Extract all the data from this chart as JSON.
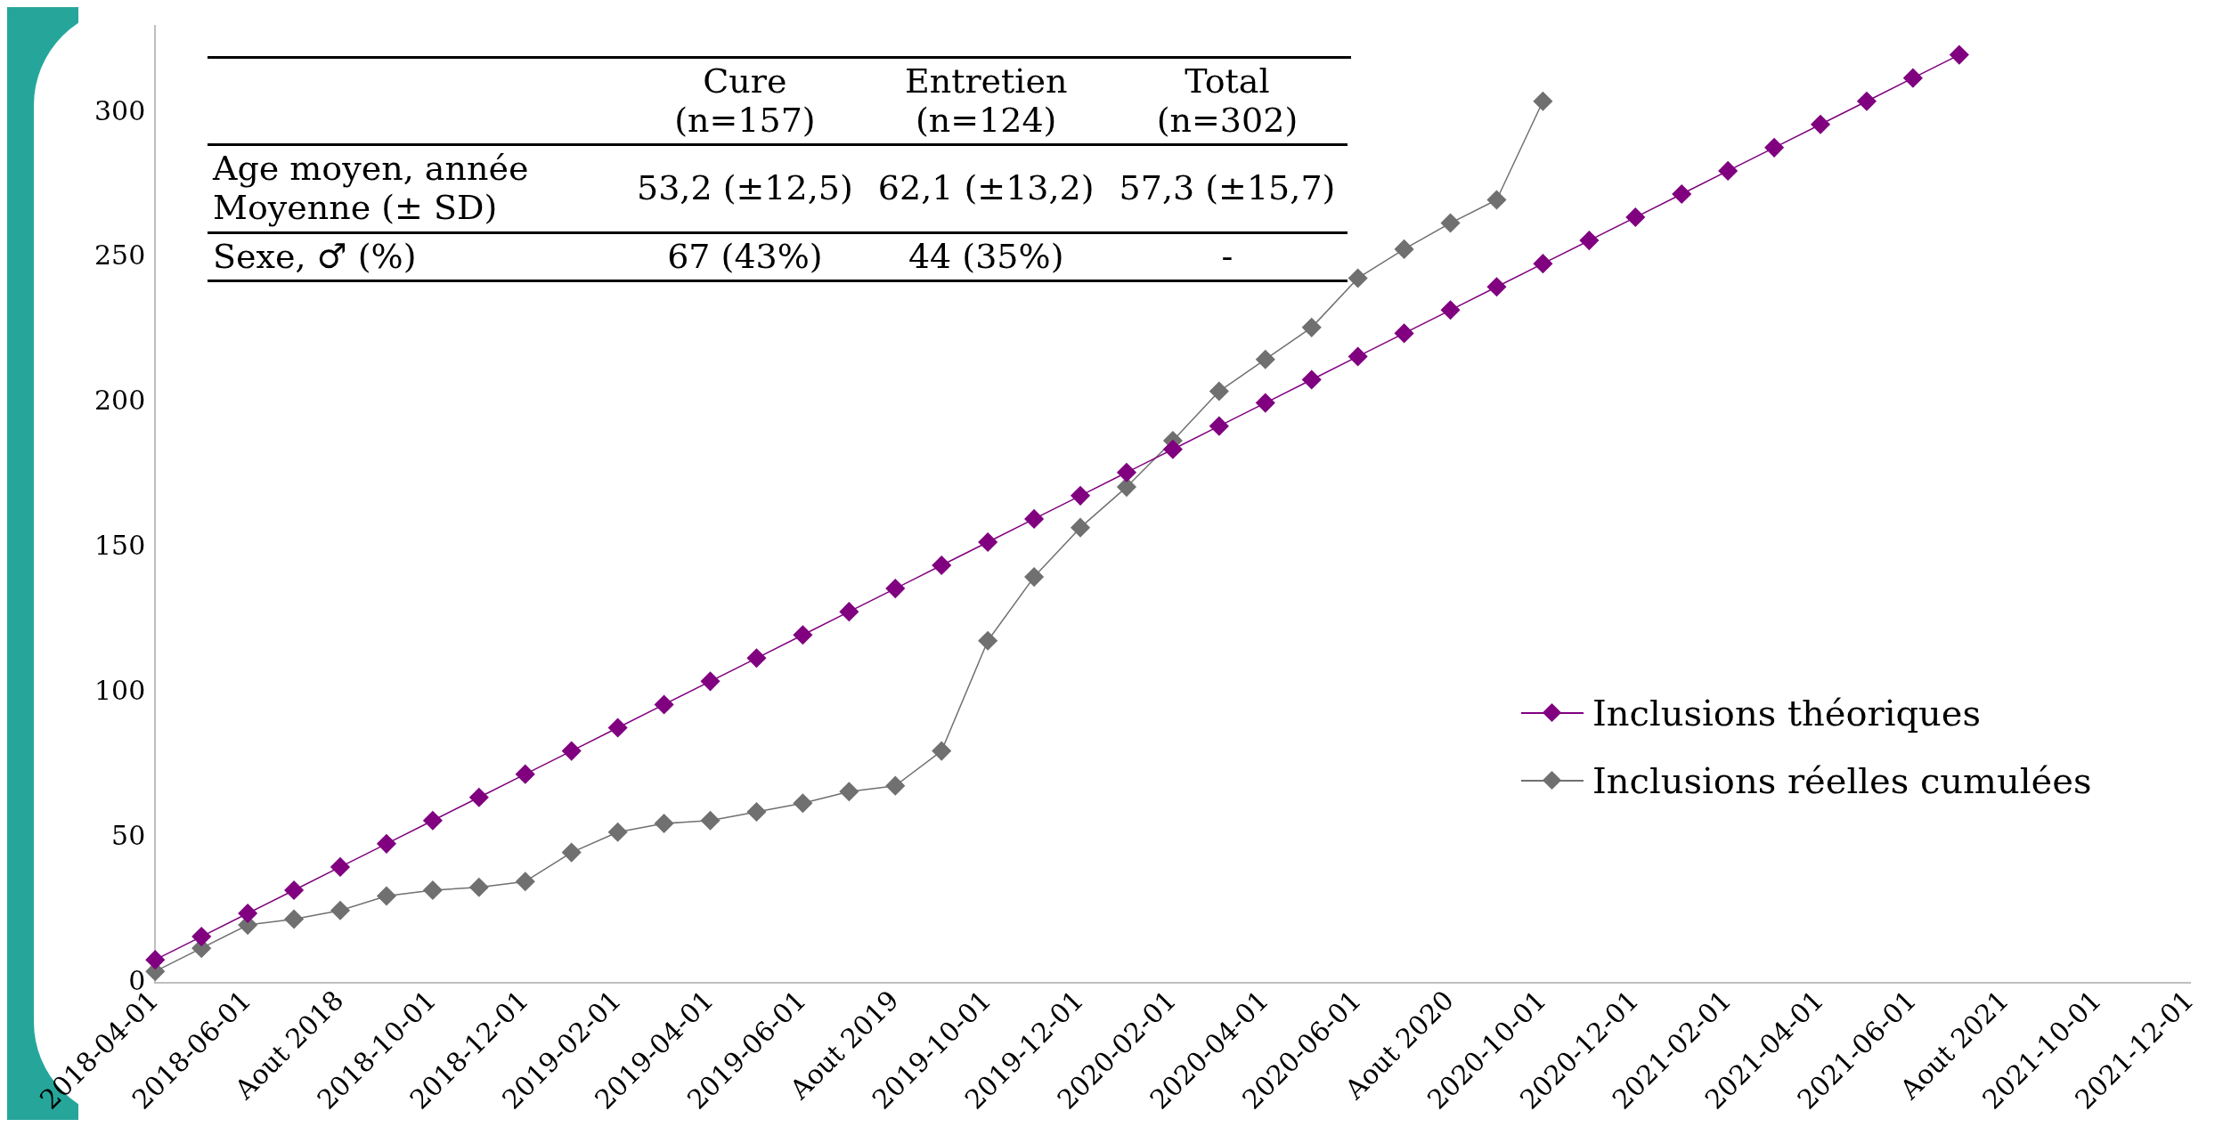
{
  "chart_data": {
    "type": "line",
    "categories": [
      "2018-04-01",
      null,
      "2018-06-01",
      null,
      "Aout 2018",
      null,
      "2018-10-01",
      null,
      "2018-12-01",
      null,
      "2019-02-01",
      null,
      "2019-04-01",
      null,
      "2019-06-01",
      null,
      "Aout 2019",
      null,
      "2019-10-01",
      null,
      "2019-12-01",
      null,
      "2020-02-01",
      null,
      "2020-04-01",
      null,
      "2020-06-01",
      null,
      "Aout 2020",
      null,
      "2020-10-01",
      null,
      "2020-12-01",
      null,
      "2021-02-01",
      null,
      "2021-04-01",
      null,
      "2021-06-01",
      null,
      "Aout 2021",
      null,
      "2021-10-01",
      null,
      "2021-12-01"
    ],
    "series": [
      {
        "name": "Inclusions théoriques",
        "color": "#800080",
        "values": [
          8,
          16,
          24,
          32,
          40,
          48,
          56,
          64,
          72,
          80,
          88,
          96,
          104,
          112,
          120,
          128,
          136,
          144,
          152,
          160,
          168,
          176,
          184,
          192,
          200,
          208,
          216,
          224,
          232,
          240,
          248,
          256,
          264,
          272,
          280,
          288,
          296,
          304,
          312,
          320,
          null,
          null,
          null,
          null,
          null
        ]
      },
      {
        "name": "Inclusions réelles cumulées",
        "color": "#707070",
        "values": [
          4,
          12,
          20,
          22,
          25,
          30,
          32,
          33,
          35,
          45,
          52,
          55,
          56,
          59,
          62,
          66,
          68,
          80,
          118,
          140,
          157,
          171,
          187,
          204,
          215,
          226,
          243,
          253,
          262,
          270,
          304,
          null,
          null,
          null,
          null,
          null,
          null,
          null,
          null,
          null,
          null,
          null,
          null,
          null,
          null
        ]
      }
    ],
    "ylim": [
      0,
      330
    ],
    "yticks": [
      0,
      50,
      100,
      150,
      200,
      250,
      300
    ],
    "marker": "diamond",
    "legend": "right",
    "annotations": [
      "Cure\n(n=157)",
      "Entretien\n(n=124)",
      "Total\n(n=302)",
      "Age moyen, année\nMoyenne (± SD)",
      "53,2 (±12,5)",
      "62,1 (±13,2)",
      "57,3 (±15,7)",
      "Sexe, ♂ (%)",
      "67 (43%)",
      "44 (35%)",
      "-"
    ]
  }
}
